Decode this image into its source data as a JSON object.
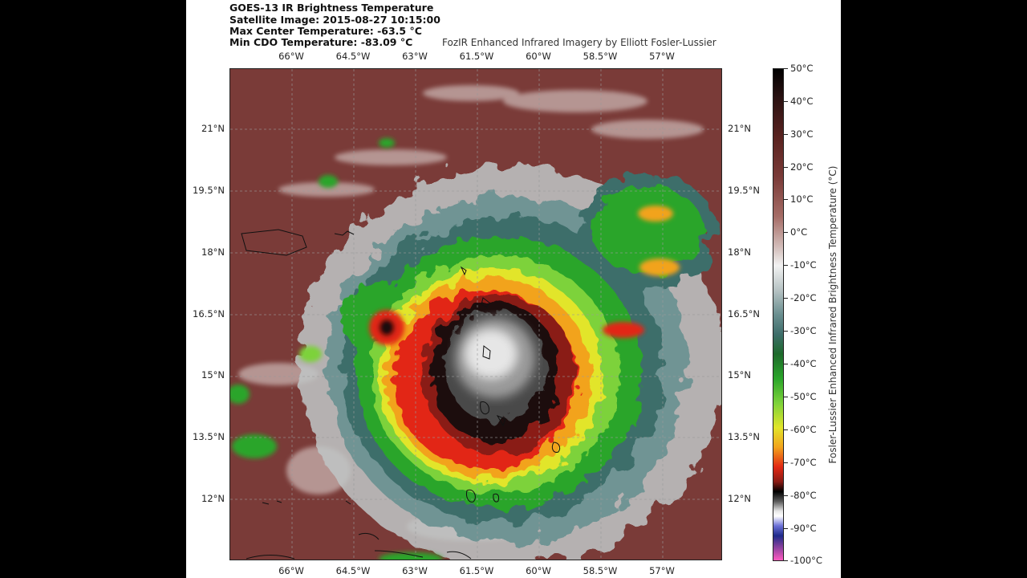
{
  "header": {
    "line1": "GOES-13 IR Brightness Temperature",
    "line2": "Satellite Image: 2015-08-27 10:15:00",
    "line3": "Max Center Temperature: -63.5 °C",
    "line4": "Min CDO Temperature: -83.09 °C",
    "credit": "FozIR Enhanced Infrared Imagery by Elliott Fosler-Lussier"
  },
  "axes": {
    "lon_labels": [
      "66°W",
      "64.5°W",
      "63°W",
      "61.5°W",
      "60°W",
      "58.5°W",
      "57°W"
    ],
    "lat_labels": [
      "21°N",
      "19.5°N",
      "18°N",
      "16.5°N",
      "15°N",
      "13.5°N",
      "12°N"
    ]
  },
  "colorbar": {
    "label": "Fosler-Lussier Enhanced Infrared Brightness Temperature (°C)",
    "ticks": [
      "50°C",
      "40°C",
      "30°C",
      "20°C",
      "10°C",
      "0°C",
      "-10°C",
      "-20°C",
      "-30°C",
      "-40°C",
      "-50°C",
      "-60°C",
      "-70°C",
      "-80°C",
      "-90°C",
      "-100°C"
    ]
  },
  "colors": {
    "background": "#7a3b38",
    "cold_black": "#000000",
    "red": "#e22813",
    "orange": "#f2a31c",
    "yellow": "#e2e52a",
    "green": "#2aa52a",
    "teal": "#3e6e6b",
    "white_core": "#f0f0f0"
  }
}
